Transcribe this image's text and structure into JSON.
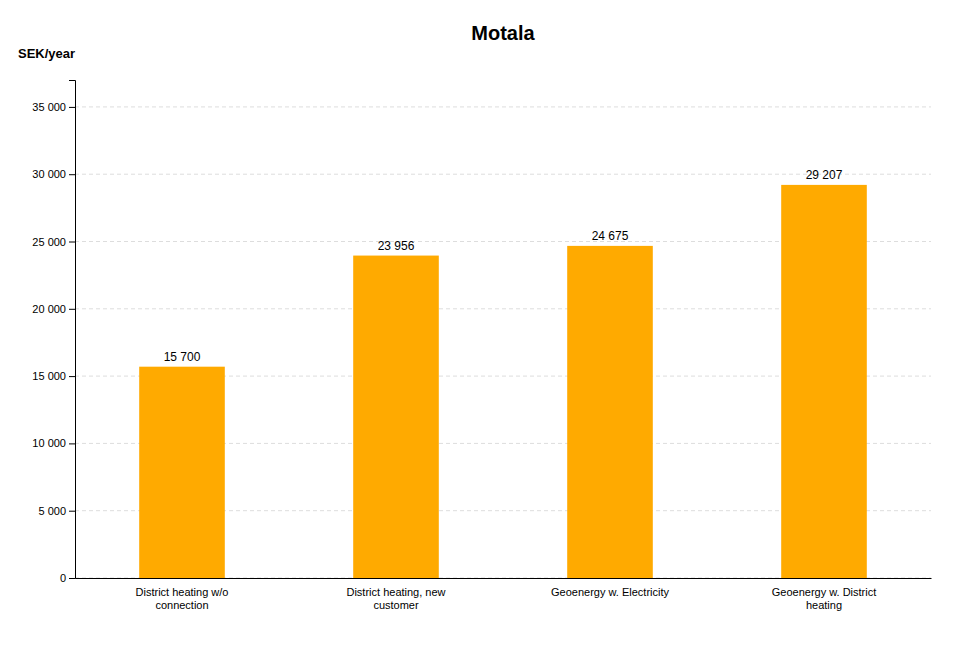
{
  "chart_data": {
    "type": "bar",
    "title": "Motala",
    "ylabel": "SEK/year",
    "categories": [
      "District heating w/o\nconnection",
      "District heating, new\ncustomer",
      "Geoenergy w. Electricity",
      "Geoenergy w. District\nheating"
    ],
    "values": [
      15700,
      23956,
      24675,
      29207
    ],
    "value_labels": [
      "15 700",
      "23 956",
      "24 675",
      "29 207"
    ],
    "color": "#FFAA00",
    "ylim": [
      0,
      37000
    ],
    "yticks": [
      0,
      {
        "value": 5000,
        "label": "5 000"
      },
      {
        "value": 10000,
        "label": "10 000"
      },
      {
        "value": 15000,
        "label": "15 000"
      },
      {
        "value": 20000,
        "label": "20 000"
      },
      {
        "value": 25000,
        "label": "25 000"
      },
      {
        "value": 30000,
        "label": "30 000"
      },
      {
        "value": 35000,
        "label": "35 000"
      }
    ],
    "grid": true,
    "data_labels": true
  }
}
